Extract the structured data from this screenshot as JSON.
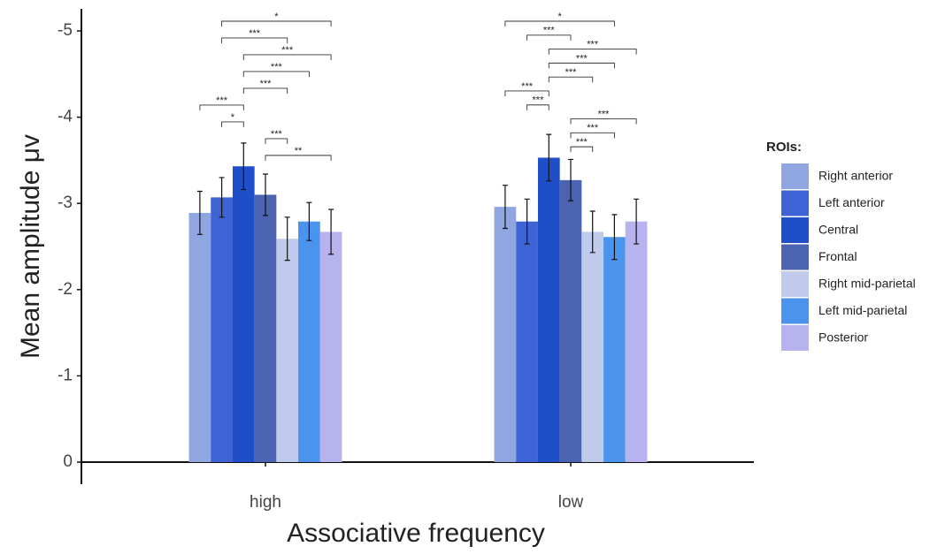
{
  "chart_data": {
    "type": "bar",
    "y_label": "Mean amplitude μv",
    "x_label": "Associative frequency",
    "legend_title": "ROIs:",
    "legend_position": "right",
    "categories": [
      "high",
      "low"
    ],
    "ylim": [
      0,
      -5
    ],
    "yticks": [
      0,
      -1,
      -2,
      -3,
      -4,
      -5
    ],
    "series": [
      {
        "name": "Right anterior",
        "color": "#8fa6e0",
        "values": [
          -2.89,
          -2.96
        ],
        "errors": [
          0.25,
          0.25
        ]
      },
      {
        "name": "Left anterior",
        "color": "#3d63d4",
        "values": [
          -3.07,
          -2.79
        ],
        "errors": [
          0.23,
          0.26
        ]
      },
      {
        "name": "Central",
        "color": "#1f4fc8",
        "values": [
          -3.43,
          -3.53
        ],
        "errors": [
          0.27,
          0.27
        ]
      },
      {
        "name": "Frontal",
        "color": "#4b63b0",
        "values": [
          -3.1,
          -3.27
        ],
        "errors": [
          0.24,
          0.24
        ]
      },
      {
        "name": "Right mid-parietal",
        "color": "#c0cbec",
        "values": [
          -2.59,
          -2.67
        ],
        "errors": [
          0.25,
          0.24
        ]
      },
      {
        "name": "Left mid-parietal",
        "color": "#4a94ee",
        "values": [
          -2.79,
          -2.61
        ],
        "errors": [
          0.22,
          0.26
        ]
      },
      {
        "name": "Posterior",
        "color": "#b7b3ee",
        "values": [
          -2.67,
          -2.79
        ],
        "errors": [
          0.26,
          0.26
        ]
      }
    ],
    "significance": [
      [
        {
          "from": 3,
          "to": 6,
          "label": "**"
        },
        {
          "from": 3,
          "to": 4,
          "label": "***"
        },
        {
          "from": 1,
          "to": 2,
          "label": "*"
        },
        {
          "from": 0,
          "to": 2,
          "label": "***"
        },
        {
          "from": 2,
          "to": 4,
          "label": "***"
        },
        {
          "from": 2,
          "to": 5,
          "label": "***"
        },
        {
          "from": 2,
          "to": 6,
          "label": "***"
        },
        {
          "from": 1,
          "to": 4,
          "label": "***"
        },
        {
          "from": 1,
          "to": 6,
          "label": "*"
        }
      ],
      [
        {
          "from": 3,
          "to": 4,
          "label": "***"
        },
        {
          "from": 3,
          "to": 5,
          "label": "***"
        },
        {
          "from": 3,
          "to": 6,
          "label": "***"
        },
        {
          "from": 1,
          "to": 2,
          "label": "***"
        },
        {
          "from": 0,
          "to": 2,
          "label": "***"
        },
        {
          "from": 2,
          "to": 4,
          "label": "***"
        },
        {
          "from": 2,
          "to": 5,
          "label": "***"
        },
        {
          "from": 2,
          "to": 6,
          "label": "***"
        },
        {
          "from": 1,
          "to": 3,
          "label": "***"
        },
        {
          "from": 0,
          "to": 5,
          "label": "*"
        }
      ]
    ]
  }
}
